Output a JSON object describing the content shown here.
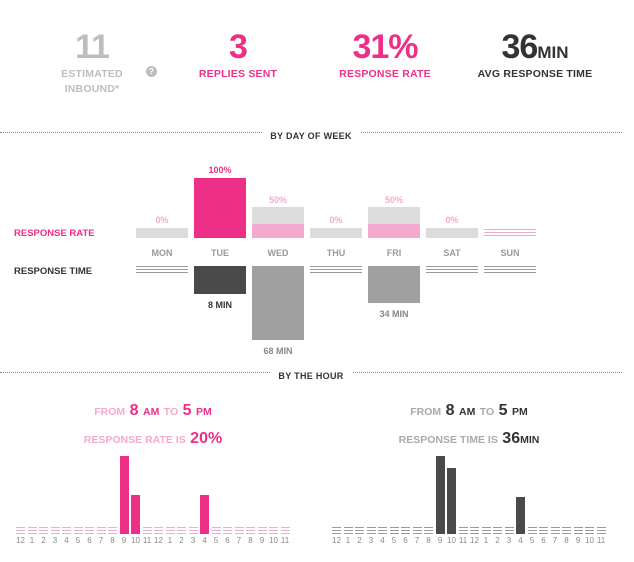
{
  "stats": {
    "inbound": {
      "value": "11",
      "label_1": "ESTIMATED",
      "label_2": "INBOUND*"
    },
    "help_icon": "?",
    "replies": {
      "value": "3",
      "label": "REPLIES SENT"
    },
    "rate": {
      "value": "31%",
      "label": "RESPONSE RATE"
    },
    "avg": {
      "value": "36",
      "unit": "MIN",
      "label": "AVG RESPONSE TIME"
    }
  },
  "sections": {
    "by_day": "BY DAY OF WEEK",
    "by_hour": "BY THE HOUR"
  },
  "day_rows": {
    "rate_label": "RESPONSE RATE",
    "time_label": "RESPONSE TIME"
  },
  "days": [
    {
      "name": "MON",
      "rate_label": "0%",
      "rate": 0,
      "time_label": "",
      "time_min": null
    },
    {
      "name": "TUE",
      "rate_label": "100%",
      "rate": 100,
      "time_label": "8 MIN",
      "time_min": 8
    },
    {
      "name": "WED",
      "rate_label": "50%",
      "rate": 50,
      "time_label": "68 MIN",
      "time_min": 68
    },
    {
      "name": "THU",
      "rate_label": "0%",
      "rate": 0,
      "time_label": "",
      "time_min": null
    },
    {
      "name": "FRI",
      "rate_label": "50%",
      "rate": 50,
      "time_label": "34 MIN",
      "time_min": 34
    },
    {
      "name": "SAT",
      "rate_label": "0%",
      "rate": 0,
      "time_label": "",
      "time_min": null
    },
    {
      "name": "SUN",
      "rate_label": "",
      "rate": null,
      "time_label": "",
      "time_min": null
    }
  ],
  "hour_left": {
    "from": "FROM",
    "start_num": "8",
    "start_ampm": "AM",
    "to": "TO",
    "end_num": "5",
    "end_ampm": "PM",
    "metric": "RESPONSE RATE IS",
    "value": "20%"
  },
  "hour_right": {
    "from": "FROM",
    "start_num": "8",
    "start_ampm": "AM",
    "to": "TO",
    "end_num": "5",
    "end_ampm": "PM",
    "metric": "RESPONSE TIME IS",
    "value": "36",
    "unit": "MIN"
  },
  "chart_data": [
    {
      "type": "bar",
      "title": "",
      "categories": [
        "12",
        "1",
        "2",
        "3",
        "4",
        "5",
        "6",
        "7",
        "8",
        "9",
        "10",
        "11",
        "12",
        "1",
        "2",
        "3",
        "4",
        "5",
        "6",
        "7",
        "8",
        "9",
        "10",
        "11"
      ],
      "series": [
        {
          "values": [
            0,
            0,
            0,
            0,
            0,
            0,
            0,
            0,
            0,
            100,
            50,
            0,
            0,
            0,
            0,
            0,
            50,
            0,
            0,
            0,
            0,
            0,
            0,
            0
          ]
        }
      ],
      "ylim": [
        0,
        100
      ]
    },
    {
      "type": "bar",
      "title": "",
      "categories": [
        "12",
        "1",
        "2",
        "3",
        "4",
        "5",
        "6",
        "7",
        "8",
        "9",
        "10",
        "11",
        "12",
        "1",
        "2",
        "3",
        "4",
        "5",
        "6",
        "7",
        "8",
        "9",
        "10",
        "11"
      ],
      "series": [
        {
          "values": [
            0,
            0,
            0,
            0,
            0,
            0,
            0,
            0,
            0,
            100,
            85,
            0,
            0,
            0,
            0,
            0,
            48,
            0,
            0,
            0,
            0,
            0,
            0,
            0
          ]
        }
      ],
      "ylim": [
        0,
        100
      ]
    }
  ],
  "colors": {
    "pink": "#ee2f87",
    "pink_light": "#f6a9ce",
    "dark": "#4a4a4a",
    "mid_gray": "#a0a0a0",
    "light_gray": "#dcdcdc"
  }
}
